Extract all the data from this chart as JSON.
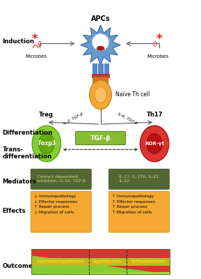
{
  "title": "APCs",
  "foxp3_label": "Foxp3",
  "ror_label": "ROR-γt",
  "tgfb_label": "TGF-β",
  "il2_tgfb": "IL-2, TGF-β",
  "il6_tgfb": "IL-6, TGF-β",
  "microbes": "Microbes",
  "treg_label": "Treg",
  "th17_label": "Th17",
  "naive_label": "Naïve Th cell",
  "mediator_left": "Contact dependent\ninhibition, IL-10, TGF-β",
  "mediator_right": "IL-17, IL-17A, IL-21\nIL-22",
  "effects_left": "↓ Immunopathology\n↓ Effector responses\n↑ Repair process\n↓ Migration of cells",
  "effects_right": "↑ Immunopathology\n↑ Effector responses\n↑ Repair process\n↑ Migration of cells",
  "outcome_labels": [
    "Immunoregulation",
    "Equilibrium",
    "Inflammation"
  ],
  "section_labels": [
    [
      "Induction",
      0.865
    ],
    [
      "Differentiation",
      0.535
    ],
    [
      "Trans-\ndifferentiation",
      0.475
    ],
    [
      "Mediators",
      0.36
    ],
    [
      "Effects",
      0.255
    ],
    [
      "Outcome",
      0.055
    ]
  ],
  "bg_color": "#ffffff",
  "apc_color": "#6699cc",
  "apc_edge": "#3366aa",
  "naive_color": "#f4a832",
  "naive_edge": "#cc8820",
  "pillar_color": "#5588cc",
  "pillar_edge": "#3366aa",
  "tcr_color": "#cc7722",
  "tcr_edge": "#aa5511",
  "treg_outer": "#88cc33",
  "treg_inner": "#66aa11",
  "th17_outer": "#dd3333",
  "th17_inner": "#bb1111",
  "mediator_bg": "#556633",
  "mediator_text": "#ccdd88",
  "effects_bg": "#f4a832",
  "effects_text": "#000000",
  "tgfb_box_color": "#88bb33",
  "tgfb_box_edge": "#558822",
  "arrow_color": "#555555",
  "outcome_green": "#88cc33",
  "outcome_red": "#dd3333",
  "outcome_yellow_text": "#dddd22",
  "sep_color": "#222222"
}
